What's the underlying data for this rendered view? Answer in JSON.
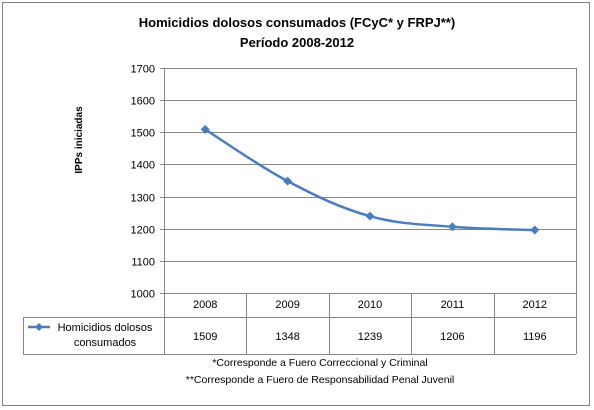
{
  "chart_data": {
    "type": "line",
    "title": "Homicidios dolosos consumados (FCyC* y FRPJ**)",
    "subtitle": "Período 2008-2012",
    "ylabel": "IPPs iniciadas",
    "xlabel": "",
    "ylim": [
      1000,
      1700
    ],
    "yticks": [
      1000,
      1100,
      1200,
      1300,
      1400,
      1500,
      1600,
      1700
    ],
    "categories": [
      "2008",
      "2009",
      "2010",
      "2011",
      "2012"
    ],
    "series": [
      {
        "name": "Homicidios dolosos consumados",
        "name_lines": [
          "Homicidios dolosos",
          "consumados"
        ],
        "values": [
          1509,
          1348,
          1239,
          1206,
          1196
        ],
        "color": "#4a7ebb"
      }
    ],
    "grid": true,
    "legend": "data-table",
    "footnotes": [
      "*Corresponde a Fuero Correccional  y Criminal",
      "**Corresponde a Fuero de Responsabilidad  Penal  Juvenil"
    ]
  }
}
